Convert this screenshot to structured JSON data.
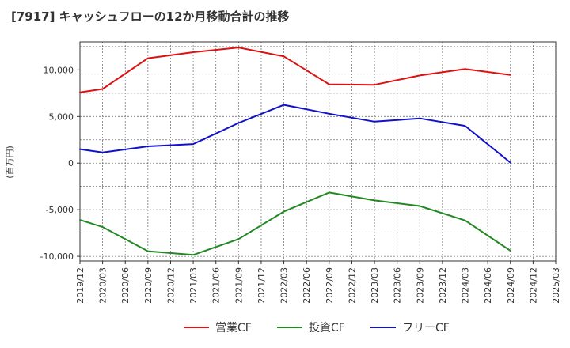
{
  "chart_data": {
    "type": "line",
    "title": "[7917]  キャッシュフローの12か月移動合計の推移",
    "ylabel": "(百万円)",
    "xlabel": "",
    "ylim": [
      -10500,
      13000
    ],
    "yticks": [
      10000,
      5000,
      0,
      -5000,
      -10000
    ],
    "ytick_labels": [
      "10,000",
      "5,000",
      "0",
      "-5,000",
      "-10,000"
    ],
    "x_tick_labels": [
      "2019/12",
      "2020/03",
      "2020/06",
      "2020/09",
      "2020/12",
      "2021/03",
      "2021/06",
      "2021/09",
      "2021/12",
      "2022/03",
      "2022/06",
      "2022/09",
      "2022/12",
      "2023/03",
      "2023/06",
      "2023/09",
      "2023/12",
      "2024/03",
      "2024/06",
      "2024/09",
      "2024/12",
      "2025/03"
    ],
    "grid": true,
    "legend_position": "bottom",
    "series": [
      {
        "name": "営業CF",
        "color": "#dd1111",
        "x": [
          0,
          1,
          3,
          5,
          7,
          9,
          11,
          13,
          15,
          17,
          19
        ],
        "values": [
          7600,
          7950,
          11250,
          11900,
          12400,
          11450,
          8450,
          8400,
          9400,
          10100,
          9450
        ]
      },
      {
        "name": "投資CF",
        "color": "#228822",
        "x": [
          0,
          1,
          3,
          5,
          7,
          9,
          11,
          13,
          15,
          17,
          19
        ],
        "values": [
          -6100,
          -6850,
          -9450,
          -9850,
          -8150,
          -5200,
          -3150,
          -4000,
          -4600,
          -6150,
          -9400
        ]
      },
      {
        "name": "フリーCF",
        "color": "#1111cc",
        "x": [
          0,
          1,
          3,
          5,
          7,
          9,
          11,
          13,
          15,
          17,
          19
        ],
        "values": [
          1500,
          1150,
          1800,
          2050,
          4300,
          6250,
          5300,
          4450,
          4800,
          4000,
          50
        ]
      }
    ]
  }
}
